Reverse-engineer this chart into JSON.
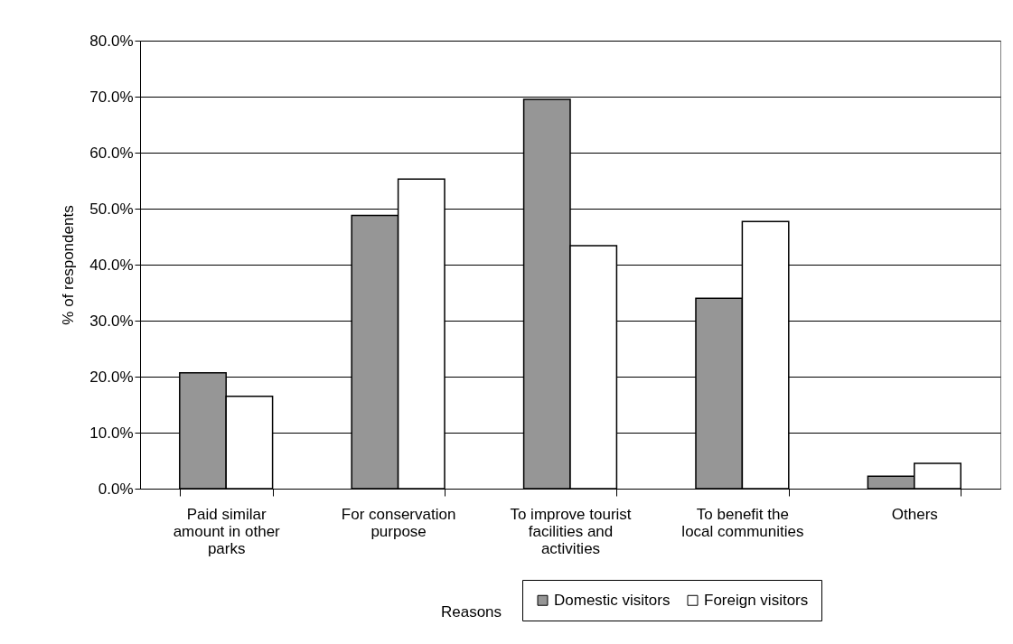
{
  "chart_data": {
    "type": "bar",
    "xlabel": "Reasons",
    "ylabel": "% of respondents",
    "categories": [
      "Paid similar amount in other parks",
      "For conservation purpose",
      "To improve tourist facilities and activities",
      "To benefit the local communities",
      "Others"
    ],
    "series": [
      {
        "name": "Domestic visitors",
        "color": "#969696",
        "values": [
          20.7,
          48.8,
          69.5,
          34.0,
          2.2
        ]
      },
      {
        "name": "Foreign visitors",
        "color": "#ffffff",
        "values": [
          16.5,
          55.3,
          43.4,
          47.7,
          4.5
        ]
      }
    ],
    "ylim": [
      0,
      80
    ],
    "yticks": [
      {
        "value": 0,
        "label": "0.0%"
      },
      {
        "value": 10,
        "label": "10.0%"
      },
      {
        "value": 20,
        "label": "20.0%"
      },
      {
        "value": 30,
        "label": "30.0%"
      },
      {
        "value": 40,
        "label": "40.0%"
      },
      {
        "value": 50,
        "label": "50.0%"
      },
      {
        "value": 60,
        "label": "60.0%"
      },
      {
        "value": 70,
        "label": "70.0%"
      },
      {
        "value": 80,
        "label": "80.0%"
      }
    ],
    "grid": "y",
    "legend": "bottom right"
  }
}
